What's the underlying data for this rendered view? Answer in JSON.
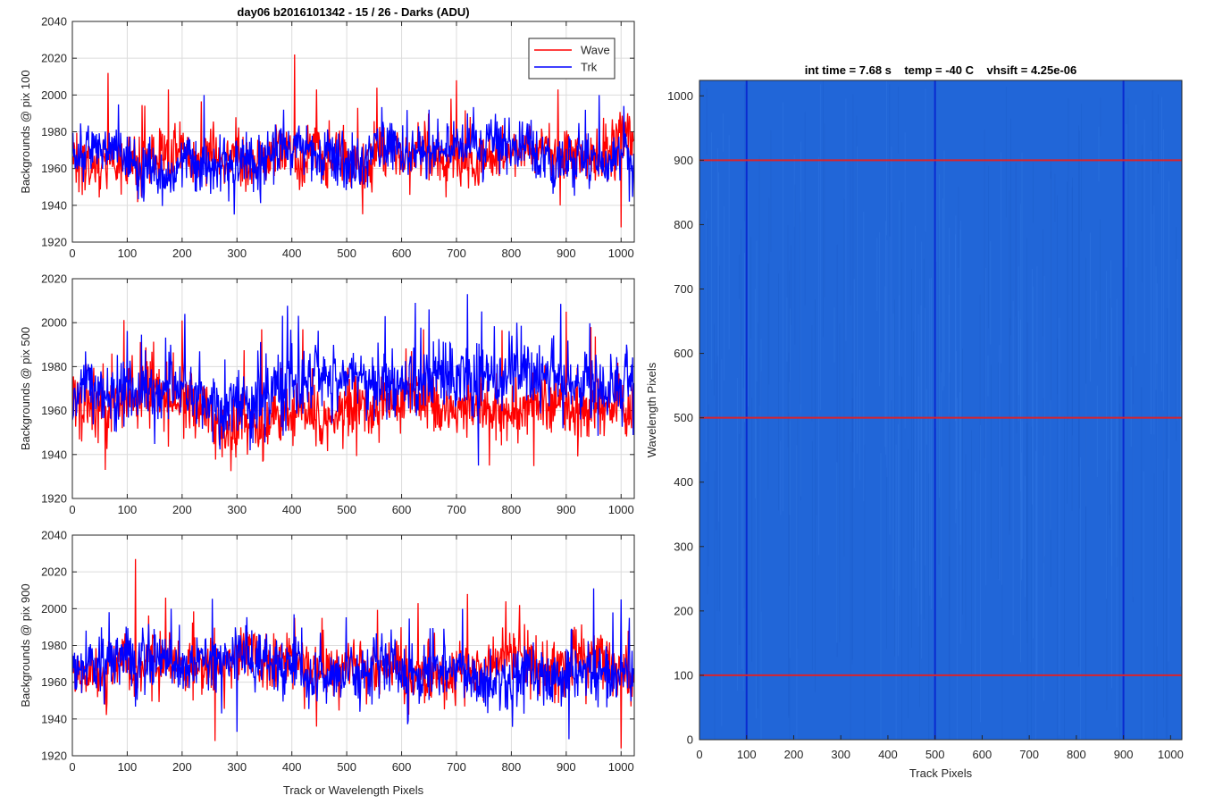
{
  "chart_data": [
    {
      "type": "line",
      "panel": "top-left",
      "title": "day06 b2016101342 - 15 / 26 - Darks (ADU)",
      "xlabel": "",
      "ylabel": "Backgrounds @ pix 100",
      "xlim": [
        0,
        1024
      ],
      "ylim": [
        1920,
        2040
      ],
      "xticks": [
        "0",
        "100",
        "200",
        "300",
        "400",
        "500",
        "600",
        "700",
        "800",
        "900",
        "1000"
      ],
      "yticks": [
        "1920",
        "1940",
        "1960",
        "1980",
        "2000",
        "2020",
        "2040"
      ],
      "grid": true,
      "legend": {
        "position": "top-right",
        "entries": [
          "Wave",
          "Trk"
        ]
      },
      "series": [
        {
          "name": "Wave",
          "color": "#ff0000",
          "mean": 1966,
          "sd": 9,
          "spikes": [
            [
              65,
              2012
            ],
            [
              175,
              2003
            ],
            [
              405,
              2022
            ],
            [
              445,
              2003
            ],
            [
              520,
              1993
            ],
            [
              555,
              2004
            ],
            [
              690,
              1998
            ],
            [
              700,
              2008
            ],
            [
              885,
              2003
            ],
            [
              1000,
              1928
            ]
          ]
        },
        {
          "name": "Trk",
          "color": "#0000ff",
          "mean": 1967,
          "sd": 8,
          "spikes": [
            [
              240,
              2000
            ],
            [
              295,
              1935
            ],
            [
              385,
              1992
            ],
            [
              650,
              1992
            ],
            [
              720,
              1990
            ],
            [
              960,
              2000
            ],
            [
              1005,
              1994
            ],
            [
              1015,
              1942
            ]
          ]
        }
      ]
    },
    {
      "type": "line",
      "panel": "middle-left",
      "title": "",
      "xlabel": "",
      "ylabel": "Backgrounds @ pix 500",
      "xlim": [
        0,
        1024
      ],
      "ylim": [
        1920,
        2020
      ],
      "xticks": [
        "0",
        "100",
        "200",
        "300",
        "400",
        "500",
        "600",
        "700",
        "800",
        "900",
        "1000"
      ],
      "yticks": [
        "1920",
        "1940",
        "1960",
        "1980",
        "2000",
        "2020"
      ],
      "grid": true,
      "series": [
        {
          "name": "Wave",
          "color": "#ff0000",
          "mean": 1963,
          "sd": 8,
          "spikes": [
            [
              60,
              1933
            ],
            [
              200,
              2001
            ],
            [
              345,
              1997
            ],
            [
              420,
              1997
            ],
            [
              640,
              1997
            ],
            [
              760,
              1935
            ],
            [
              900,
              2005
            ],
            [
              945,
              1998
            ]
          ]
        },
        {
          "name": "Trk",
          "color": "#0000ff",
          "mean": 1969,
          "sd": 9,
          "spikes": [
            [
              205,
              2004
            ],
            [
              570,
              2003
            ],
            [
              625,
              2009
            ],
            [
              650,
              2006
            ],
            [
              720,
              2013
            ],
            [
              740,
              1935
            ],
            [
              810,
              2000
            ],
            [
              1010,
              1990
            ]
          ]
        }
      ]
    },
    {
      "type": "line",
      "panel": "bottom-left",
      "title": "",
      "xlabel": "Track or Wavelength Pixels",
      "ylabel": "Backgrounds @ pix 900",
      "xlim": [
        0,
        1024
      ],
      "ylim": [
        1920,
        2040
      ],
      "xticks": [
        "0",
        "100",
        "200",
        "300",
        "400",
        "500",
        "600",
        "700",
        "800",
        "900",
        "1000"
      ],
      "yticks": [
        "1920",
        "1940",
        "1960",
        "1980",
        "2000",
        "2020",
        "2040"
      ],
      "grid": true,
      "series": [
        {
          "name": "Wave",
          "color": "#ff0000",
          "mean": 1966,
          "sd": 9,
          "spikes": [
            [
              115,
              2027
            ],
            [
              170,
              2006
            ],
            [
              260,
              1928
            ],
            [
              405,
              1995
            ],
            [
              455,
              1995
            ],
            [
              630,
              2003
            ],
            [
              720,
              2008
            ],
            [
              790,
              2004
            ],
            [
              815,
              2002
            ],
            [
              1000,
              1924
            ]
          ]
        },
        {
          "name": "Trk",
          "color": "#0000ff",
          "mean": 1968,
          "sd": 9,
          "spikes": [
            [
              180,
              2000
            ],
            [
              300,
              1933
            ],
            [
              905,
              1929
            ],
            [
              950,
              2011
            ],
            [
              985,
              1998
            ],
            [
              1000,
              2005
            ],
            [
              1015,
              1995
            ]
          ]
        }
      ]
    },
    {
      "type": "heatmap",
      "panel": "right",
      "title": "int time = 7.68 s    temp = -40 C    vhsift = 4.25e-06",
      "xlabel": "Track Pixels",
      "ylabel": "Wavelength Pixels",
      "xlim": [
        0,
        1024
      ],
      "ylim": [
        0,
        1024
      ],
      "xticks": [
        "0",
        "100",
        "200",
        "300",
        "400",
        "500",
        "600",
        "700",
        "800",
        "900",
        "1000"
      ],
      "yticks": [
        "0",
        "100",
        "200",
        "300",
        "400",
        "500",
        "600",
        "700",
        "800",
        "900",
        "1000"
      ],
      "base_color": "#2166d8",
      "vertical_lines": {
        "color": "#0a2bd0",
        "x": [
          100,
          500,
          900
        ]
      },
      "horizontal_lines": {
        "color": "#d9232b",
        "y": [
          100,
          500,
          900
        ]
      }
    }
  ]
}
